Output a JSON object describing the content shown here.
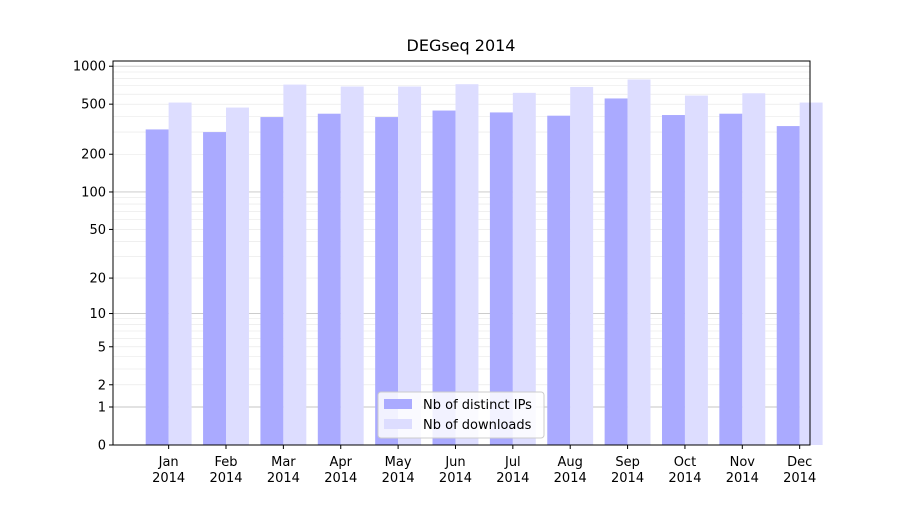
{
  "chart_data": {
    "type": "bar",
    "title": "DEGseq 2014",
    "xlabel": "",
    "ylabel": "",
    "y_scale": "log1p",
    "ylim": [
      0,
      1100
    ],
    "y_ticks": [
      0,
      1,
      2,
      5,
      10,
      20,
      50,
      100,
      200,
      500,
      1000
    ],
    "grid": "horizontal",
    "legend_position": "lower-center",
    "categories": [
      [
        "Jan",
        "2014"
      ],
      [
        "Feb",
        "2014"
      ],
      [
        "Mar",
        "2014"
      ],
      [
        "Apr",
        "2014"
      ],
      [
        "May",
        "2014"
      ],
      [
        "Jun",
        "2014"
      ],
      [
        "Jul",
        "2014"
      ],
      [
        "Aug",
        "2014"
      ],
      [
        "Sep",
        "2014"
      ],
      [
        "Oct",
        "2014"
      ],
      [
        "Nov",
        "2014"
      ],
      [
        "Dec",
        "2014"
      ]
    ],
    "series": [
      {
        "name": "Nb of distinct IPs",
        "color": "#aaaaff",
        "values": [
          315,
          300,
          395,
          420,
          395,
          445,
          430,
          405,
          555,
          410,
          420,
          335
        ]
      },
      {
        "name": "Nb of downloads",
        "color": "#ddddff",
        "values": [
          515,
          470,
          715,
          690,
          690,
          720,
          615,
          685,
          785,
          585,
          610,
          515
        ]
      }
    ]
  }
}
